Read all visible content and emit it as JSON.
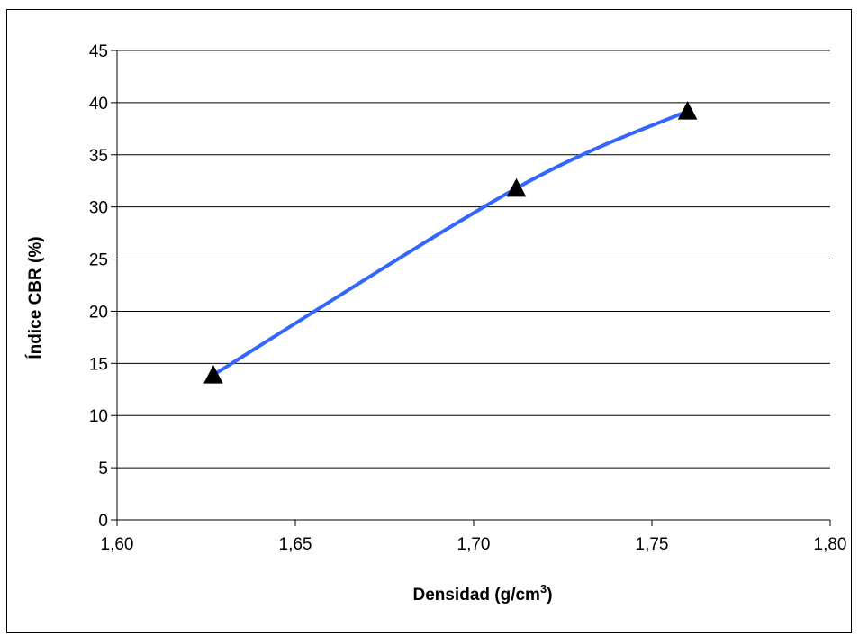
{
  "chart_data": {
    "type": "line",
    "title": "",
    "xlabel": "Densidad (g/cm",
    "xlabel_superscript": "3",
    "xlabel_suffix": ")",
    "ylabel": "Índice CBR (%)",
    "xlim": [
      1.6,
      1.8
    ],
    "ylim": [
      0,
      45
    ],
    "x_ticks": [
      1.6,
      1.65,
      1.7,
      1.75,
      1.8
    ],
    "x_tick_labels": [
      "1,60",
      "1,65",
      "1,70",
      "1,75",
      "1,80"
    ],
    "y_ticks": [
      0,
      5,
      10,
      15,
      20,
      25,
      30,
      35,
      40,
      45
    ],
    "y_tick_labels": [
      "0",
      "5",
      "10",
      "15",
      "20",
      "25",
      "30",
      "35",
      "40",
      "45"
    ],
    "grid": "horizontal",
    "series": [
      {
        "points": [
          {
            "x": 1.627,
            "y": 13.9
          },
          {
            "x": 1.712,
            "y": 31.8
          },
          {
            "x": 1.76,
            "y": 39.2
          }
        ],
        "line_color": "#3366ff",
        "marker": "triangle",
        "marker_color": "#000000"
      }
    ]
  }
}
